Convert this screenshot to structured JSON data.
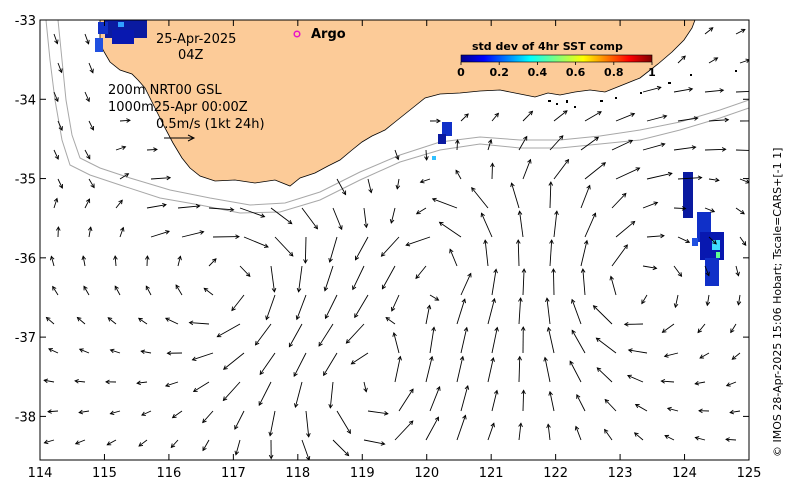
{
  "map": {
    "date": "25-Apr-2025",
    "hour": "04Z",
    "legend_argo": "Argo",
    "depth_line_1": "200m  NRT00 GSL",
    "depth_line_2": "1000m25-Apr 00:00Z",
    "scale_label": "0.5m/s (1kt 24h)",
    "colorbar_title": "std dev of 4hr SST comp",
    "colorbar_ticks": [
      "0",
      "0.2",
      "0.4",
      "0.6",
      "0.8",
      "1"
    ],
    "credit": "© IMOS 28-Apr-2025 15:06 Hobart; Tscale=CARS+[-1 1]",
    "x_ticks": [
      "114",
      "115",
      "116",
      "117",
      "118",
      "119",
      "120",
      "121",
      "122",
      "123",
      "124",
      "125"
    ],
    "y_ticks": [
      "-33",
      "-34",
      "-35",
      "-36",
      "-37",
      "-38"
    ],
    "x_range": [
      114,
      125
    ],
    "y_range": [
      -38.55,
      -33
    ],
    "colors": {
      "land": "#fccb98",
      "argo": "#e815c8",
      "contour": "#a8a8a8"
    }
  }
}
